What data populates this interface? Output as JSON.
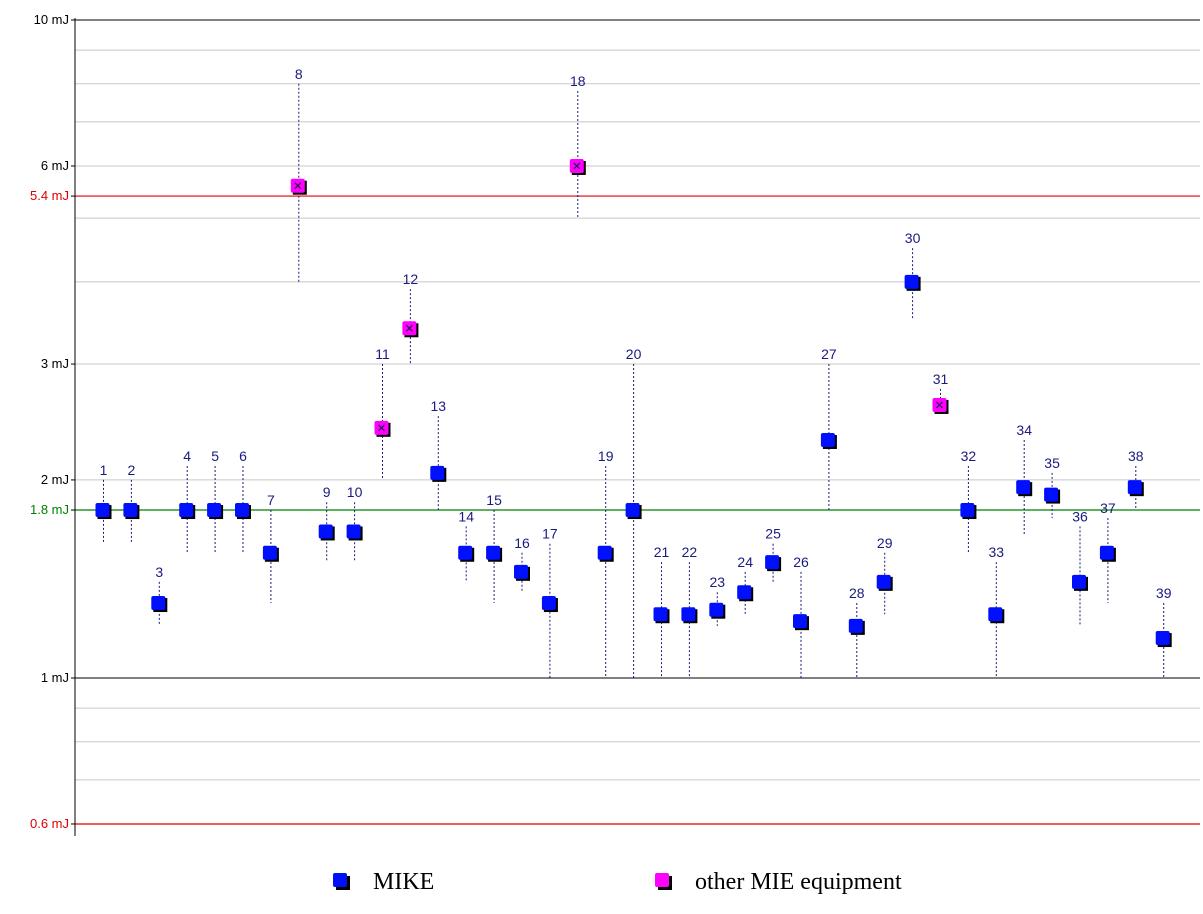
{
  "chart_data": {
    "type": "scatter",
    "y_scale": "log",
    "ylim": [
      0.5,
      10
    ],
    "yticks": [
      {
        "value": 10,
        "label": "10 mJ"
      },
      {
        "value": 6,
        "label": "6 mJ"
      },
      {
        "value": 3,
        "label": "3 mJ"
      },
      {
        "value": 2,
        "label": "2 mJ"
      },
      {
        "value": 1,
        "label": "1 mJ"
      }
    ],
    "reference_lines": [
      {
        "value": 5.4,
        "label": "5.4 mJ",
        "color": "#e00000"
      },
      {
        "value": 1.8,
        "label": "1.8 mJ",
        "color": "#008000"
      },
      {
        "value": 0.6,
        "label": "0.6 mJ",
        "color": "#e00000"
      }
    ],
    "grid": true,
    "legend_position": "bottom",
    "series": [
      {
        "name": "MIKE",
        "color": "#0010ff"
      },
      {
        "name": "other MIE equipment",
        "color": "#ff00ff"
      }
    ],
    "points": [
      {
        "id": "1",
        "y": 1.8,
        "low": 1.6,
        "high": 2.0,
        "series": 0
      },
      {
        "id": "2",
        "y": 1.8,
        "low": 1.6,
        "high": 2.0,
        "series": 0
      },
      {
        "id": "3",
        "y": 1.3,
        "low": 1.2,
        "high": 1.4,
        "series": 0
      },
      {
        "id": "4",
        "y": 1.8,
        "low": 1.55,
        "high": 2.1,
        "series": 0
      },
      {
        "id": "5",
        "y": 1.8,
        "low": 1.55,
        "high": 2.1,
        "series": 0
      },
      {
        "id": "6",
        "y": 1.8,
        "low": 1.55,
        "high": 2.1,
        "series": 0
      },
      {
        "id": "7",
        "y": 1.55,
        "low": 1.3,
        "high": 1.8,
        "series": 0
      },
      {
        "id": "8",
        "y": 5.6,
        "low": 4.0,
        "high": 8.0,
        "series": 1
      },
      {
        "id": "9",
        "y": 1.67,
        "low": 1.5,
        "high": 1.85,
        "series": 0
      },
      {
        "id": "10",
        "y": 1.67,
        "low": 1.5,
        "high": 1.85,
        "series": 0
      },
      {
        "id": "11",
        "y": 2.4,
        "low": 2.0,
        "high": 3.0,
        "series": 1
      },
      {
        "id": "12",
        "y": 3.4,
        "low": 3.0,
        "high": 3.9,
        "series": 1
      },
      {
        "id": "13",
        "y": 2.05,
        "low": 1.8,
        "high": 2.5,
        "series": 0
      },
      {
        "id": "14",
        "y": 1.55,
        "low": 1.4,
        "high": 1.7,
        "series": 0
      },
      {
        "id": "15",
        "y": 1.55,
        "low": 1.3,
        "high": 1.8,
        "series": 0
      },
      {
        "id": "16",
        "y": 1.45,
        "low": 1.35,
        "high": 1.55,
        "series": 0
      },
      {
        "id": "17",
        "y": 1.3,
        "low": 1.0,
        "high": 1.6,
        "series": 0
      },
      {
        "id": "18",
        "y": 6.0,
        "low": 5.0,
        "high": 7.8,
        "series": 1
      },
      {
        "id": "19",
        "y": 1.55,
        "low": 1.0,
        "high": 2.1,
        "series": 0
      },
      {
        "id": "20",
        "y": 1.8,
        "low": 1.0,
        "high": 3.0,
        "series": 0
      },
      {
        "id": "21",
        "y": 1.25,
        "low": 1.0,
        "high": 1.5,
        "series": 0
      },
      {
        "id": "22",
        "y": 1.25,
        "low": 1.0,
        "high": 1.5,
        "series": 0
      },
      {
        "id": "23",
        "y": 1.27,
        "low": 1.2,
        "high": 1.35,
        "series": 0
      },
      {
        "id": "24",
        "y": 1.35,
        "low": 1.25,
        "high": 1.45,
        "series": 0
      },
      {
        "id": "25",
        "y": 1.5,
        "low": 1.4,
        "high": 1.6,
        "series": 0
      },
      {
        "id": "26",
        "y": 1.22,
        "low": 1.0,
        "high": 1.45,
        "series": 0
      },
      {
        "id": "27",
        "y": 2.3,
        "low": 1.8,
        "high": 3.0,
        "series": 0
      },
      {
        "id": "28",
        "y": 1.2,
        "low": 1.0,
        "high": 1.3,
        "series": 0
      },
      {
        "id": "29",
        "y": 1.4,
        "low": 1.25,
        "high": 1.55,
        "series": 0
      },
      {
        "id": "30",
        "y": 4.0,
        "low": 3.5,
        "high": 4.5,
        "series": 0
      },
      {
        "id": "31",
        "y": 2.6,
        "low": 2.55,
        "high": 2.75,
        "series": 1
      },
      {
        "id": "32",
        "y": 1.8,
        "low": 1.55,
        "high": 2.1,
        "series": 0
      },
      {
        "id": "33",
        "y": 1.25,
        "low": 1.0,
        "high": 1.5,
        "series": 0
      },
      {
        "id": "34",
        "y": 1.95,
        "low": 1.65,
        "high": 2.3,
        "series": 0
      },
      {
        "id": "35",
        "y": 1.9,
        "low": 1.75,
        "high": 2.05,
        "series": 0
      },
      {
        "id": "36",
        "y": 1.4,
        "low": 1.2,
        "high": 1.7,
        "series": 0
      },
      {
        "id": "37",
        "y": 1.55,
        "low": 1.3,
        "high": 1.75,
        "series": 0
      },
      {
        "id": "38",
        "y": 1.95,
        "low": 1.8,
        "high": 2.1,
        "series": 0
      },
      {
        "id": "39",
        "y": 1.15,
        "low": 1.0,
        "high": 1.3,
        "series": 0
      }
    ]
  }
}
